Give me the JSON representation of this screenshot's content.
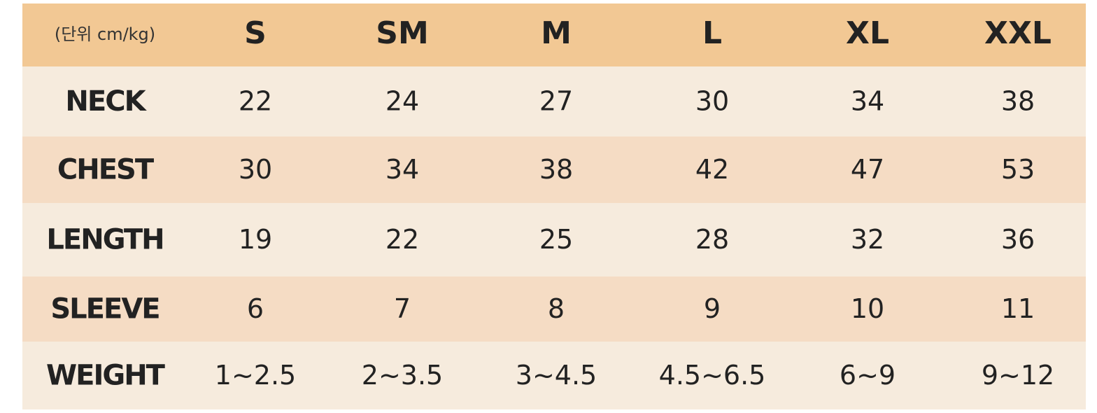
{
  "table": {
    "header": [
      "(단위 cm/kg)",
      "S",
      "SM",
      "M",
      "L",
      "XL",
      "XXL"
    ],
    "rows": [
      [
        "NECK",
        "22",
        "24",
        "27",
        "30",
        "34",
        "38"
      ],
      [
        "CHEST",
        "30",
        "34",
        "38",
        "42",
        "47",
        "53"
      ],
      [
        "LENGTH",
        "19",
        "22",
        "25",
        "28",
        "32",
        "36"
      ],
      [
        "SLEEVE",
        "6",
        "7",
        "8",
        "9",
        "10",
        "11"
      ],
      [
        "WEIGHT",
        "1~2.5",
        "2~3.5",
        "3~4.5",
        "4.5~6.5",
        "6~9",
        "9~12"
      ]
    ]
  }
}
